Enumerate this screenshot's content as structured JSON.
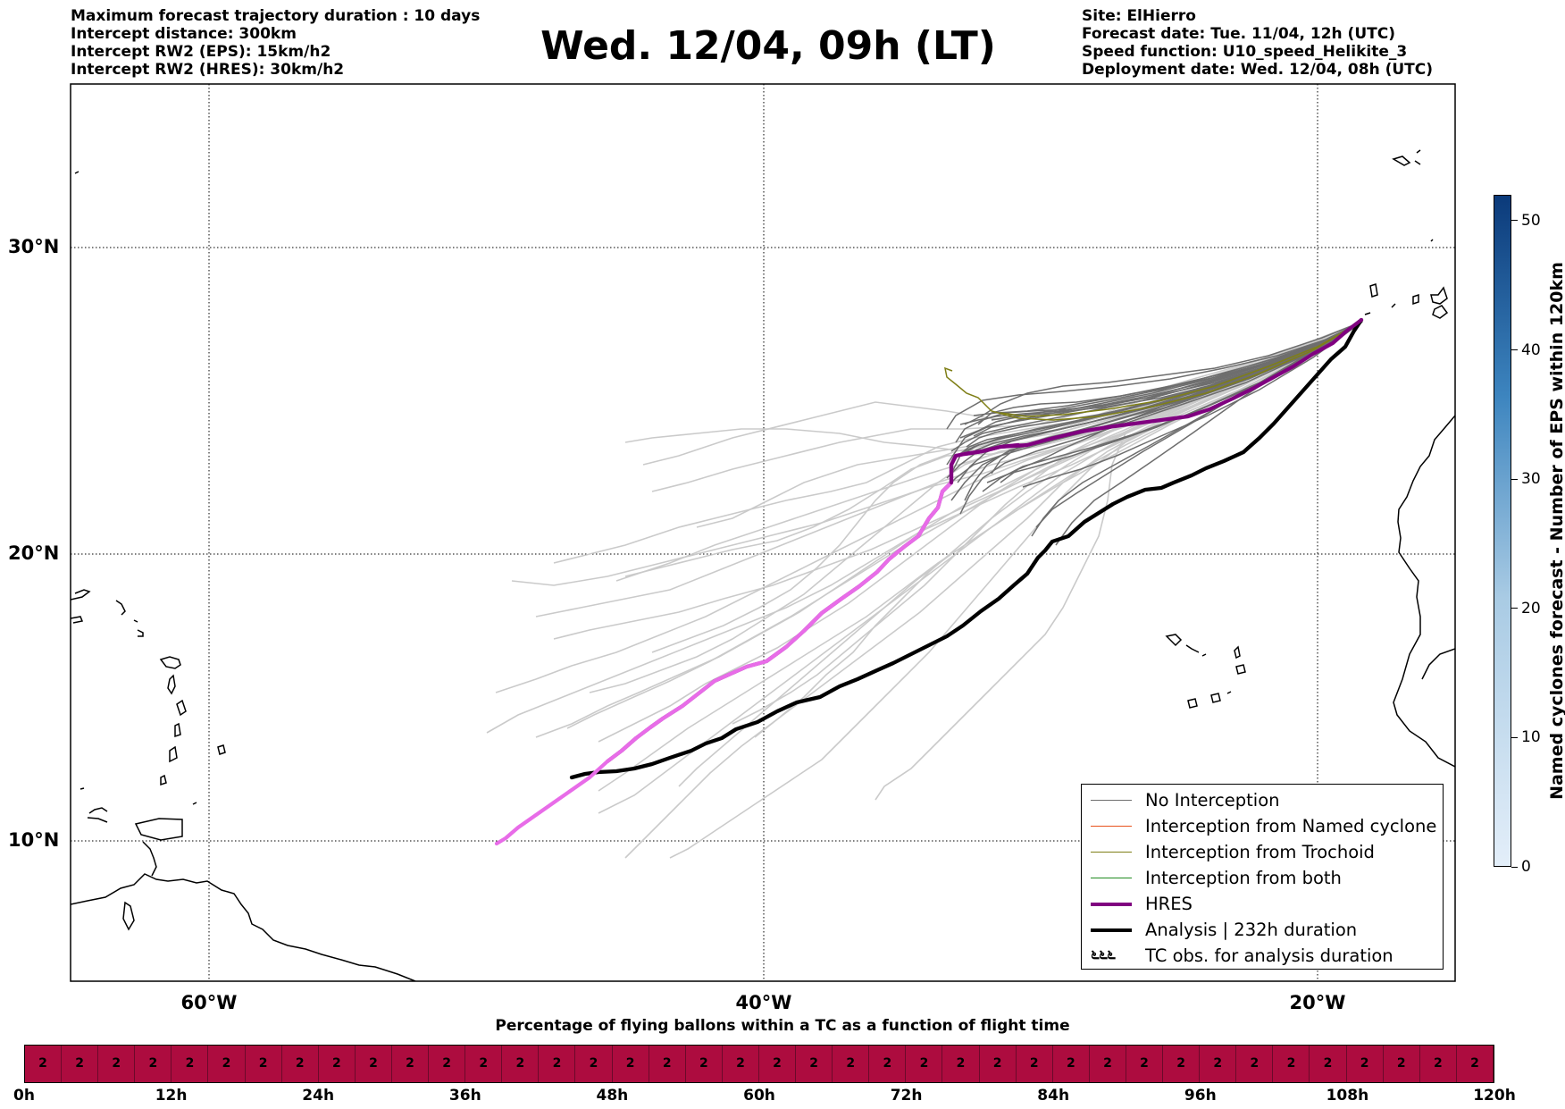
{
  "header": {
    "info_left": [
      "Maximum forecast trajectory duration : 10 days",
      "Intercept distance: 300km",
      "Intercept RW2 (EPS):  15km/h2",
      "Intercept RW2 (HRES): 30km/h2"
    ],
    "title": "Wed. 12/04, 09h (LT)",
    "info_right": [
      "Site: ElHierro",
      "Forecast date: Tue. 11/04, 12h (UTC)",
      "Speed function: U10_speed_Helikite_3",
      "Deployment date: Wed. 12/04, 08h (UTC)"
    ]
  },
  "map": {
    "lat_labels": [
      "30°N",
      "20°N",
      "10°N"
    ],
    "lon_labels": [
      "60°W",
      "40°W",
      "20°W"
    ],
    "extent": {
      "lon": [
        -65,
        -15
      ],
      "lat": [
        5,
        34.5
      ]
    }
  },
  "legend": {
    "items": [
      {
        "label": "No Interception",
        "color": "#6e6e6e",
        "kind": "thin"
      },
      {
        "label": "Interception from Named cyclone",
        "color": "#e8521c",
        "kind": "thin"
      },
      {
        "label": "Interception from Trochoid",
        "color": "#7f7f17",
        "kind": "thin"
      },
      {
        "label": "Interception from both",
        "color": "#228b22",
        "kind": "thin"
      },
      {
        "label": "HRES",
        "color": "#800080",
        "kind": "thick"
      },
      {
        "label": "Analysis | 232h duration",
        "color": "#000000",
        "kind": "thick"
      },
      {
        "label": "TC obs. for analysis duration",
        "color": "#000000",
        "kind": "symbol",
        "symbol": "೬೬೬"
      }
    ]
  },
  "colorbar": {
    "label": "Named cyclones forecast - Number of EPS within 120km",
    "ticks": [
      "0",
      "10",
      "20",
      "30",
      "40",
      "50"
    ],
    "min": 0,
    "max": 52,
    "color_low": "#e3eef9",
    "color_high": "#0b3a7a"
  },
  "timeline": {
    "title": "Percentage of flying ballons within a TC as a function of flight time",
    "cell_value": "2",
    "cell_count": 40,
    "cell_color": "#ad0c3f",
    "time_labels": [
      "0h",
      "12h",
      "24h",
      "36h",
      "48h",
      "60h",
      "72h",
      "84h",
      "96h",
      "108h",
      "120h"
    ]
  }
}
